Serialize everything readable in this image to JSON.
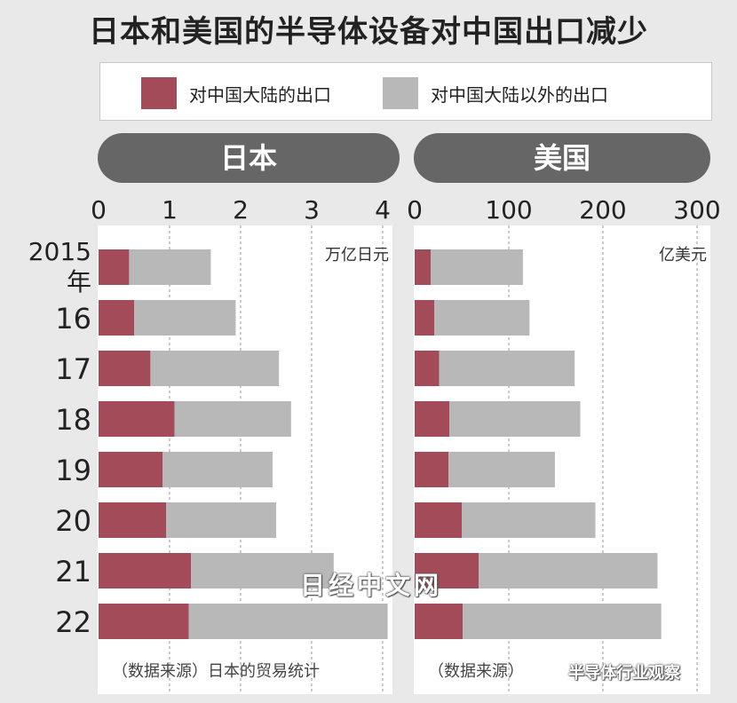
{
  "title": "日本和美国的半导体设备对中国出口减少",
  "legend": [
    {
      "label": "对中国大陆的出口",
      "color": "#a34b58"
    },
    {
      "label": "对中国大陆以外的出口",
      "color": "#b8b8b8"
    }
  ],
  "chart_data": [
    {
      "type": "bar",
      "stacked": true,
      "orientation": "horizontal",
      "title": "日本",
      "unit": "万亿日元",
      "source": "（数据来源）日本的贸易统计",
      "categories": [
        "2015\n年",
        "16",
        "17",
        "18",
        "19",
        "20",
        "21",
        "22"
      ],
      "xlim": [
        0,
        4
      ],
      "xticks": [
        0,
        1,
        2,
        3,
        4
      ],
      "series": [
        {
          "name": "对中国大陆的出口",
          "values": [
            0.43,
            0.5,
            0.73,
            1.07,
            0.9,
            0.95,
            1.3,
            1.27
          ]
        },
        {
          "name": "对中国大陆以外的出口",
          "values": [
            1.15,
            1.43,
            1.81,
            1.64,
            1.55,
            1.55,
            2.01,
            2.8
          ]
        }
      ]
    },
    {
      "type": "bar",
      "stacked": true,
      "orientation": "horizontal",
      "title": "美国",
      "unit": "亿美元",
      "source": "（数据来源）",
      "categories": [
        "2015\n年",
        "16",
        "17",
        "18",
        "19",
        "20",
        "21",
        "22"
      ],
      "xlim": [
        0,
        300
      ],
      "xticks": [
        0,
        100,
        200,
        300
      ],
      "series": [
        {
          "name": "对中国大陆的出口",
          "values": [
            17,
            21,
            26,
            37,
            36,
            50,
            68,
            51
          ]
        },
        {
          "name": "对中国大陆以外的出口",
          "values": [
            98,
            101,
            144,
            139,
            113,
            142,
            190,
            211
          ]
        }
      ]
    }
  ],
  "watermark": "日经中文网",
  "corner_watermark": "半导体行业观察"
}
